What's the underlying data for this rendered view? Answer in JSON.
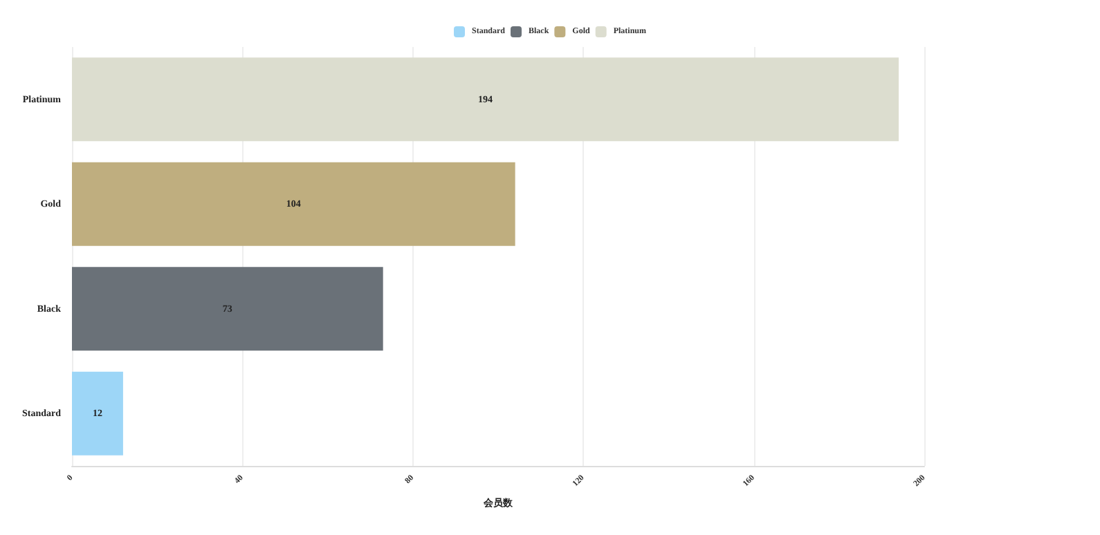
{
  "chart_data": {
    "type": "bar",
    "orientation": "horizontal",
    "xlabel": "会员数",
    "categories": [
      "Platinum",
      "Gold",
      "Black",
      "Standard"
    ],
    "series": [
      {
        "name": "Standard",
        "color": "#9dd6f7",
        "values": [
          null,
          null,
          null,
          12
        ]
      },
      {
        "name": "Black",
        "color": "#6a7178",
        "values": [
          null,
          null,
          73,
          null
        ]
      },
      {
        "name": "Gold",
        "color": "#bfae7f",
        "values": [
          null,
          104,
          null,
          null
        ]
      },
      {
        "name": "Platinum",
        "color": "#dcddcf",
        "values": [
          194,
          null,
          null,
          null
        ]
      }
    ],
    "xlim": [
      0,
      200
    ],
    "xticks": [
      0,
      40,
      80,
      120,
      160,
      200
    ],
    "grid": "x",
    "legend": "top",
    "data_labels": true
  }
}
